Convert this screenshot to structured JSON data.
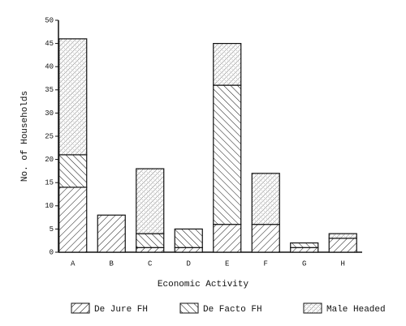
{
  "chart_data": {
    "type": "stacked_bar",
    "y_label": "No. of Households",
    "x_label": "Economic Activity",
    "categories": [
      "A",
      "B",
      "C",
      "D",
      "E",
      "F",
      "G",
      "H"
    ],
    "series": [
      {
        "name": "De Jure FH",
        "color": "#111111",
        "values": [
          14,
          8,
          1,
          1,
          6,
          6,
          1,
          3
        ]
      },
      {
        "name": "De Facto FH",
        "color": "#111111",
        "values": [
          7,
          0,
          3,
          4,
          30,
          0,
          1,
          0
        ]
      },
      {
        "name": "Male Headed",
        "color": "#111111",
        "values": [
          25,
          0,
          14,
          0,
          9,
          11,
          0,
          1
        ]
      }
    ],
    "ylim": [
      0,
      50
    ],
    "yticks": [
      0,
      5,
      10,
      15,
      20,
      25,
      30,
      35,
      40,
      45,
      50
    ]
  }
}
